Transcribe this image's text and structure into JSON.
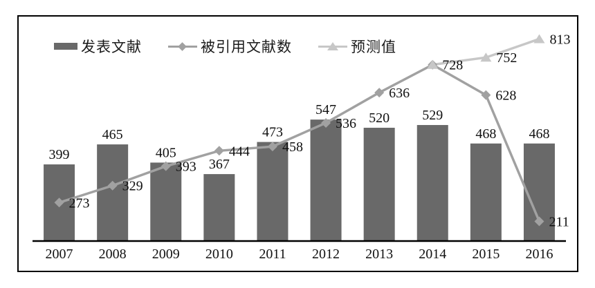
{
  "chart_data": {
    "type": "bar",
    "categories": [
      "2007",
      "2008",
      "2009",
      "2010",
      "2011",
      "2012",
      "2013",
      "2014",
      "2015",
      "2016"
    ],
    "series": [
      {
        "name": "发表文献",
        "type": "bar",
        "color": "#696969",
        "values": [
          399,
          465,
          405,
          367,
          473,
          547,
          520,
          529,
          468,
          468
        ]
      },
      {
        "name": "被引用文献数",
        "type": "line",
        "marker": "diamond",
        "color": "#a1a1a1",
        "values": [
          273,
          329,
          393,
          444,
          458,
          536,
          636,
          728,
          628,
          211
        ]
      },
      {
        "name": "预测值",
        "type": "line",
        "marker": "triangle",
        "color": "#c7c7c7",
        "values": [
          null,
          null,
          null,
          null,
          null,
          null,
          null,
          728,
          752,
          813
        ]
      }
    ],
    "title": "",
    "xlabel": "",
    "ylabel": "",
    "ylim": [
      146,
      838
    ],
    "grid": false,
    "legend_position": "top-left",
    "value_labels_shown": true
  },
  "legend": {
    "items": [
      {
        "label": "发表文献"
      },
      {
        "label": "被引用文献数"
      },
      {
        "label": "预测值"
      }
    ]
  }
}
